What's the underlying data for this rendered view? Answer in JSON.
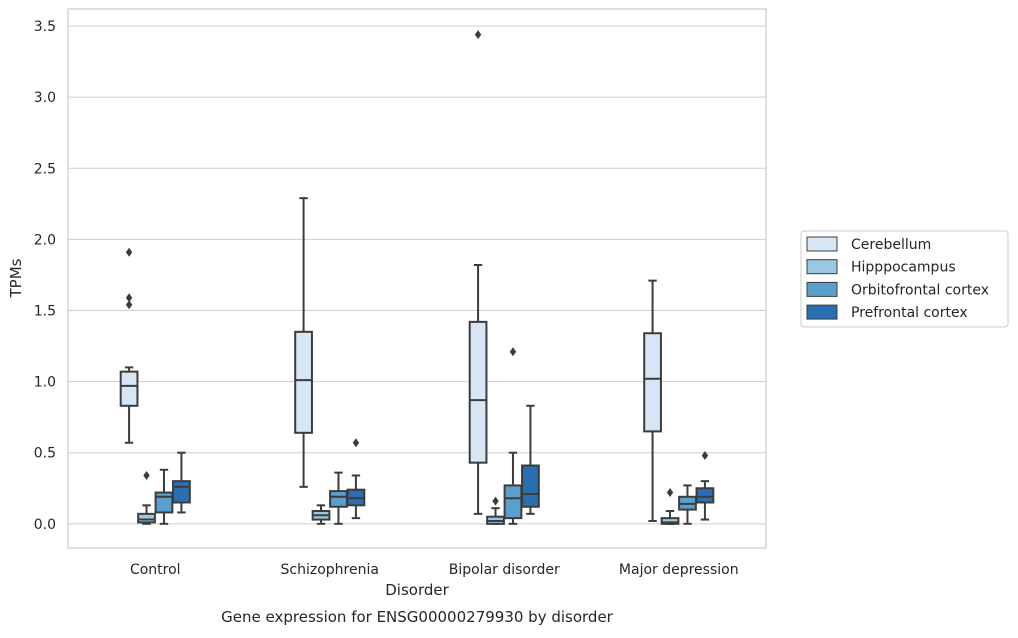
{
  "chart_data": {
    "type": "box",
    "xlabel": "Disorder",
    "ylabel": "TPMs",
    "caption": "Gene expression for ENSG00000279930 by disorder",
    "ylim": [
      -0.17,
      3.62
    ],
    "yticks": [
      "0.0",
      "0.5",
      "1.0",
      "1.5",
      "2.0",
      "2.5",
      "3.0",
      "3.5"
    ],
    "grid": "horizontal",
    "legend_position": "right",
    "categories": [
      "Control",
      "Schizophrenia",
      "Bipolar disorder",
      "Major depression"
    ],
    "series": [
      {
        "name": "Cerebellum",
        "color": "#d6e6f4",
        "boxes": [
          {
            "whisker_low": 0.57,
            "q1": 0.83,
            "median": 0.97,
            "q3": 1.07,
            "whisker_high": 1.1,
            "outliers": [
              1.91,
              1.59,
              1.54
            ]
          },
          {
            "whisker_low": 0.26,
            "q1": 0.64,
            "median": 1.01,
            "q3": 1.35,
            "whisker_high": 2.29,
            "outliers": []
          },
          {
            "whisker_low": 0.07,
            "q1": 0.43,
            "median": 0.87,
            "q3": 1.42,
            "whisker_high": 1.82,
            "outliers": [
              3.44
            ]
          },
          {
            "whisker_low": 0.02,
            "q1": 0.65,
            "median": 1.02,
            "q3": 1.34,
            "whisker_high": 1.71,
            "outliers": []
          }
        ]
      },
      {
        "name": "Hipppocampus",
        "color": "#9ac8e0",
        "boxes": [
          {
            "whisker_low": 0.0,
            "q1": 0.01,
            "median": 0.03,
            "q3": 0.07,
            "whisker_high": 0.13,
            "outliers": [
              0.34
            ]
          },
          {
            "whisker_low": 0.0,
            "q1": 0.03,
            "median": 0.06,
            "q3": 0.09,
            "whisker_high": 0.13,
            "outliers": []
          },
          {
            "whisker_low": 0.0,
            "q1": 0.0,
            "median": 0.02,
            "q3": 0.05,
            "whisker_high": 0.11,
            "outliers": [
              0.16
            ]
          },
          {
            "whisker_low": 0.0,
            "q1": 0.0,
            "median": 0.01,
            "q3": 0.04,
            "whisker_high": 0.09,
            "outliers": [
              0.22
            ]
          }
        ]
      },
      {
        "name": "Orbitofrontal cortex",
        "color": "#5aa0cd",
        "boxes": [
          {
            "whisker_low": 0.0,
            "q1": 0.08,
            "median": 0.19,
            "q3": 0.22,
            "whisker_high": 0.38,
            "outliers": []
          },
          {
            "whisker_low": 0.0,
            "q1": 0.12,
            "median": 0.19,
            "q3": 0.23,
            "whisker_high": 0.36,
            "outliers": []
          },
          {
            "whisker_low": 0.0,
            "q1": 0.04,
            "median": 0.18,
            "q3": 0.27,
            "whisker_high": 0.5,
            "outliers": [
              1.21
            ]
          },
          {
            "whisker_low": 0.0,
            "q1": 0.1,
            "median": 0.14,
            "q3": 0.19,
            "whisker_high": 0.27,
            "outliers": []
          }
        ]
      },
      {
        "name": "Prefrontal cortex",
        "color": "#2a6fb0",
        "boxes": [
          {
            "whisker_low": 0.08,
            "q1": 0.15,
            "median": 0.26,
            "q3": 0.3,
            "whisker_high": 0.5,
            "outliers": []
          },
          {
            "whisker_low": 0.04,
            "q1": 0.13,
            "median": 0.18,
            "q3": 0.24,
            "whisker_high": 0.34,
            "outliers": [
              0.57
            ]
          },
          {
            "whisker_low": 0.07,
            "q1": 0.12,
            "median": 0.21,
            "q3": 0.41,
            "whisker_high": 0.83,
            "outliers": []
          },
          {
            "whisker_low": 0.03,
            "q1": 0.15,
            "median": 0.19,
            "q3": 0.25,
            "whisker_high": 0.3,
            "outliers": [
              0.48
            ]
          }
        ]
      }
    ]
  }
}
